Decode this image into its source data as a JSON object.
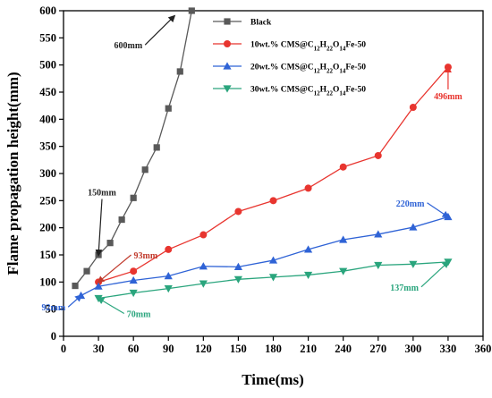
{
  "chart_data": {
    "type": "line",
    "xlabel": "Time(ms)",
    "ylabel": "Flame propagation height(mm)",
    "xlim": [
      0,
      360
    ],
    "ylim": [
      0,
      600
    ],
    "xticks": [
      0,
      30,
      60,
      90,
      120,
      150,
      180,
      210,
      240,
      270,
      300,
      330,
      360
    ],
    "yticks": [
      0,
      50,
      100,
      150,
      200,
      250,
      300,
      350,
      400,
      450,
      500,
      550,
      600
    ],
    "grid": false,
    "legend_position": "top-center",
    "series": [
      {
        "name": "Black",
        "color": "#595959",
        "marker": "square",
        "x": [
          10,
          20,
          30,
          40,
          50,
          60,
          70,
          80,
          90,
          100,
          110
        ],
        "y": [
          93,
          120,
          150,
          172,
          215,
          255,
          307,
          348,
          420,
          488,
          600
        ]
      },
      {
        "name": "10wt.% CMS@C12H22O14Fe-50",
        "color": "#e8352f",
        "marker": "circle",
        "x": [
          30,
          60,
          90,
          120,
          150,
          180,
          210,
          240,
          270,
          300,
          330
        ],
        "y": [
          100,
          120,
          160,
          187,
          230,
          250,
          273,
          312,
          333,
          422,
          496
        ]
      },
      {
        "name": "20wt.% CMS@C12H22O14Fe-50",
        "color": "#2f63d6",
        "marker": "triangle-up",
        "x": [
          15,
          30,
          60,
          90,
          120,
          150,
          180,
          210,
          240,
          270,
          300,
          330
        ],
        "y": [
          75,
          92,
          103,
          111,
          129,
          128,
          140,
          160,
          178,
          188,
          201,
          220
        ]
      },
      {
        "name": "30wt.% CMS@C12H22O14Fe-50",
        "color": "#2aa57d",
        "marker": "triangle-down",
        "x": [
          30,
          60,
          90,
          120,
          150,
          180,
          210,
          240,
          270,
          300,
          330
        ],
        "y": [
          70,
          80,
          88,
          97,
          105,
          109,
          113,
          120,
          131,
          133,
          137
        ]
      }
    ],
    "annotations": [
      {
        "text": "600mm",
        "color": "#222222",
        "x": 95,
        "y": 590,
        "arrow_to": [
          70,
          537
        ]
      },
      {
        "text": "150mm",
        "color": "#222222",
        "x": 30,
        "y": 150,
        "arrow_to": [
          33,
          253
        ]
      },
      {
        "text": "93mm",
        "color": "#c0392b",
        "x": 30,
        "y": 100,
        "arrow_to": [
          58,
          150
        ]
      },
      {
        "text": "496mm",
        "color": "#e8352f",
        "x": 330,
        "y": 496,
        "arrow_to": [
          330,
          455
        ]
      },
      {
        "text": "220mm",
        "color": "#2f63d6",
        "x": 330,
        "y": 220,
        "arrow_to": [
          312,
          246
        ]
      },
      {
        "text": "92mm",
        "color": "#2f63d6",
        "x": 15,
        "y": 75,
        "arrow_to": [
          4,
          54
        ]
      },
      {
        "text": "70mm",
        "color": "#2aa57d",
        "x": 30,
        "y": 70,
        "arrow_to": [
          52,
          42
        ]
      },
      {
        "text": "137mm",
        "color": "#2aa57d",
        "x": 330,
        "y": 137,
        "arrow_to": [
          307,
          91
        ]
      }
    ],
    "legend_labels": [
      [
        "Black"
      ],
      [
        "10wt.% CMS@C",
        "12",
        "H",
        "22",
        "O",
        "14",
        "Fe-50"
      ],
      [
        "20wt.% CMS@C",
        "12",
        "H",
        "22",
        "O",
        "14",
        "Fe-50"
      ],
      [
        "30wt.% CMS@C",
        "12",
        "H",
        "22",
        "O",
        "14",
        "Fe-50"
      ]
    ]
  }
}
